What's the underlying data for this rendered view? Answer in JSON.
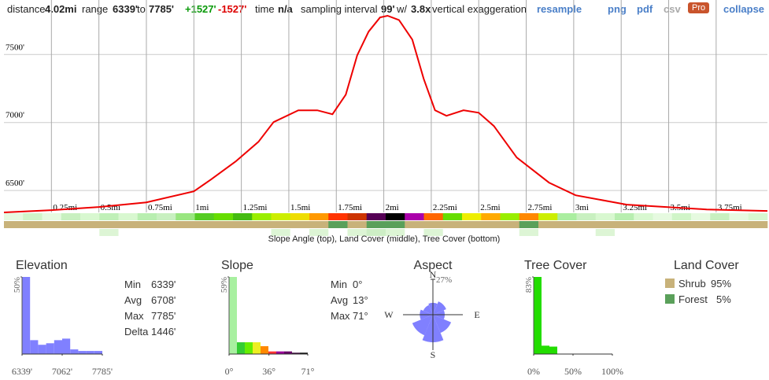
{
  "toolbar": {
    "distance_label": "distance",
    "distance": "4.02mi",
    "range_label": "range",
    "range_min": "6339'",
    "to": "to",
    "range_max": "7785'",
    "gain": "+1527'",
    "loss": "-1527'",
    "time_label": "time",
    "time": "n/a",
    "interval_label": "sampling interval",
    "interval": "99'",
    "with": "w/",
    "exaggeration": "3.8x",
    "exaggeration_label": "vertical exaggeration",
    "resample": "resample",
    "png": "png",
    "pdf": "pdf",
    "csv": "csv",
    "pro": "Pro",
    "collapse": "collapse"
  },
  "chart_data": [
    {
      "type": "line",
      "color": "#ee0000",
      "grid": true,
      "x": [
        0,
        0.25,
        0.5,
        0.75,
        1.0,
        1.09,
        1.22,
        1.34,
        1.42,
        1.55,
        1.65,
        1.73,
        1.8,
        1.86,
        1.92,
        1.98,
        2.02,
        2.08,
        2.15,
        2.21,
        2.27,
        2.33,
        2.42,
        2.5,
        2.58,
        2.7,
        2.87,
        3.01,
        3.28,
        3.7,
        4.02
      ],
      "values": [
        6339,
        6356,
        6379,
        6413,
        6494,
        6581,
        6714,
        6858,
        7003,
        7090,
        7090,
        7061,
        7205,
        7494,
        7668,
        7772,
        7785,
        7754,
        7610,
        7321,
        7090,
        7049,
        7090,
        7072,
        6974,
        6743,
        6558,
        6465,
        6396,
        6361,
        6350
      ],
      "xlim": [
        0,
        4.02
      ],
      "xticks": [
        {
          "value": 0.25,
          "label": "0.25mi"
        },
        {
          "value": 0.5,
          "label": "0.5mi"
        },
        {
          "value": 0.75,
          "label": "0.75mi"
        },
        {
          "value": 1,
          "label": "1mi"
        },
        {
          "value": 1.25,
          "label": "1.25mi"
        },
        {
          "value": 1.5,
          "label": "1.5mi"
        },
        {
          "value": 1.75,
          "label": "1.75mi"
        },
        {
          "value": 2,
          "label": "2mi"
        },
        {
          "value": 2.25,
          "label": "2.25mi"
        },
        {
          "value": 2.5,
          "label": "2.5mi"
        },
        {
          "value": 2.75,
          "label": "2.75mi"
        },
        {
          "value": 3,
          "label": "3mi"
        },
        {
          "value": 3.25,
          "label": "3.25mi"
        },
        {
          "value": 3.5,
          "label": "3.5mi"
        },
        {
          "value": 3.75,
          "label": "3.75mi"
        }
      ],
      "ylim": [
        6339,
        7785
      ],
      "yticks": [
        {
          "value": 6500,
          "label": "6500'"
        },
        {
          "value": 7000,
          "label": "7000'"
        },
        {
          "value": 7500,
          "label": "7500'"
        }
      ],
      "strips": {
        "slope": [
          "#e6fae0",
          "#d0f5c8",
          "#e6fae0",
          "#c8f0c0",
          "#d8f8d0",
          "#c0f0b8",
          "#d8f8d0",
          "#b8eeb0",
          "#c8f0c0",
          "#99e680",
          "#55cc22",
          "#66dd00",
          "#44bb11",
          "#99ee00",
          "#ccee00",
          "#eedd00",
          "#ff9900",
          "#ff3300",
          "#cc3300",
          "#550055",
          "#000000",
          "#aa00aa",
          "#ff6600",
          "#66dd00",
          "#eeee00",
          "#ffaa00",
          "#99ee00",
          "#ff8800",
          "#ccee00",
          "#aaeea0",
          "#c8f0c0",
          "#d8f8d0",
          "#b8eeb0",
          "#d8f8d0",
          "#e6fae0",
          "#d0f5c8",
          "#e6fae0",
          "#c8f0c0",
          "#e6fae0",
          "#d8f8d0"
        ],
        "land": [
          "#c8b27a",
          "#c8b27a",
          "#c8b27a",
          "#c8b27a",
          "#c8b27a",
          "#c8b27a",
          "#c8b27a",
          "#c8b27a",
          "#c8b27a",
          "#c8b27a",
          "#c8b27a",
          "#c8b27a",
          "#c8b27a",
          "#c8b27a",
          "#c8b27a",
          "#c8b27a",
          "#c8b27a",
          "#5aa05a",
          "#c8b27a",
          "#5aa05a",
          "#5aa05a",
          "#c8b27a",
          "#c8b27a",
          "#c8b27a",
          "#c8b27a",
          "#c8b27a",
          "#c8b27a",
          "#5aa05a",
          "#c8b27a",
          "#c8b27a",
          "#c8b27a",
          "#c8b27a",
          "#c8b27a",
          "#c8b27a",
          "#c8b27a",
          "#c8b27a",
          "#c8b27a",
          "#c8b27a",
          "#c8b27a",
          "#c8b27a"
        ],
        "tree": [
          "#ffffff",
          "#ffffff",
          "#ffffff",
          "#ffffff",
          "#ffffff",
          "#ddf5d5",
          "#ffffff",
          "#ffffff",
          "#ffffff",
          "#ffffff",
          "#ffffff",
          "#ffffff",
          "#ffffff",
          "#ffffff",
          "#ddf5d5",
          "#ffffff",
          "#ddf5d5",
          "#ffffff",
          "#ddf5d5",
          "#cdeec5",
          "#ddf5d5",
          "#ffffff",
          "#ddf5d5",
          "#ffffff",
          "#ffffff",
          "#ffffff",
          "#ffffff",
          "#ddf5d5",
          "#ffffff",
          "#ffffff",
          "#ffffff",
          "#ddf5d5",
          "#ffffff",
          "#ffffff",
          "#ffffff",
          "#ffffff",
          "#ffffff",
          "#ffffff",
          "#ffffff",
          "#ffffff"
        ]
      },
      "caption": "Slope Angle (top), Land Cover (middle), Tree Cover (bottom)"
    },
    {
      "type": "histogram",
      "title": "Elevation",
      "color": "#8080ff",
      "bins": [
        6339,
        6483.6,
        6628.2,
        6772.8,
        6917.4,
        7062,
        7206.6,
        7351.2,
        7495.8,
        7640.4,
        7785
      ],
      "values": [
        50,
        9,
        6,
        7,
        9,
        10,
        3,
        2,
        2,
        2
      ],
      "ylim": [
        0,
        50
      ],
      "yticks": [
        {
          "value": 50,
          "label": "50%"
        }
      ],
      "xticks": [
        {
          "value": 6339,
          "label": "6339'"
        },
        {
          "value": 7062,
          "label": "7062'"
        },
        {
          "value": 7785,
          "label": "7785'"
        }
      ],
      "stats": [
        {
          "label": "Min",
          "value": "6339'"
        },
        {
          "label": "Avg",
          "value": "6708'"
        },
        {
          "label": "Max",
          "value": "7785'"
        },
        {
          "label": "Delta",
          "value": "1446'"
        }
      ]
    },
    {
      "type": "histogram",
      "title": "Slope",
      "colors": [
        "#a8f0a0",
        "#33cc33",
        "#66ee00",
        "#eeee22",
        "#ff8800",
        "#ff3333",
        "#990099",
        "#660066",
        "#330033",
        "#000000"
      ],
      "bins": [
        0,
        7.1,
        14.2,
        21.3,
        28.4,
        35.5,
        42.6,
        49.7,
        56.8,
        63.9,
        71
      ],
      "values": [
        59,
        9,
        9,
        9,
        6,
        2,
        2,
        2,
        1,
        1
      ],
      "ylim": [
        0,
        59
      ],
      "yticks": [
        {
          "value": 59,
          "label": "59%"
        }
      ],
      "xticks": [
        {
          "value": 0,
          "label": "0°"
        },
        {
          "value": 36,
          "label": "36°"
        },
        {
          "value": 71,
          "label": "71°"
        }
      ],
      "stats": [
        {
          "label": "Min",
          "value": "0°"
        },
        {
          "label": "Avg",
          "value": "13°"
        },
        {
          "label": "Max",
          "value": "71°"
        }
      ]
    },
    {
      "type": "rose",
      "title": "Aspect",
      "color": "#8080ff",
      "categories": [
        "N",
        null,
        "E",
        null,
        "S",
        null,
        "W",
        null
      ],
      "values": [
        9,
        11,
        9,
        15,
        21,
        17,
        10,
        8
      ],
      "rlim": [
        0,
        27
      ],
      "rticks": [
        {
          "value": 27,
          "label": "27%"
        }
      ]
    },
    {
      "type": "histogram",
      "title": "Tree Cover",
      "color": "#22dd00",
      "bins": [
        0,
        10,
        20,
        30,
        40,
        50,
        60,
        70,
        80,
        90,
        100
      ],
      "values": [
        83,
        9,
        8,
        0,
        0,
        0,
        0,
        0,
        0,
        0
      ],
      "ylim": [
        0,
        83
      ],
      "yticks": [
        {
          "value": 83,
          "label": "83%"
        }
      ],
      "xticks": [
        {
          "value": 0,
          "label": "0%"
        },
        {
          "value": 50,
          "label": "50%"
        },
        {
          "value": 100,
          "label": "100%"
        }
      ]
    },
    {
      "type": "legend",
      "title": "Land Cover",
      "categories": [
        "Shrub",
        "Forest"
      ],
      "values": [
        95,
        5
      ],
      "value_labels": [
        "95%",
        "5%"
      ],
      "colors": [
        "#c8b27a",
        "#5aa05a"
      ]
    }
  ]
}
